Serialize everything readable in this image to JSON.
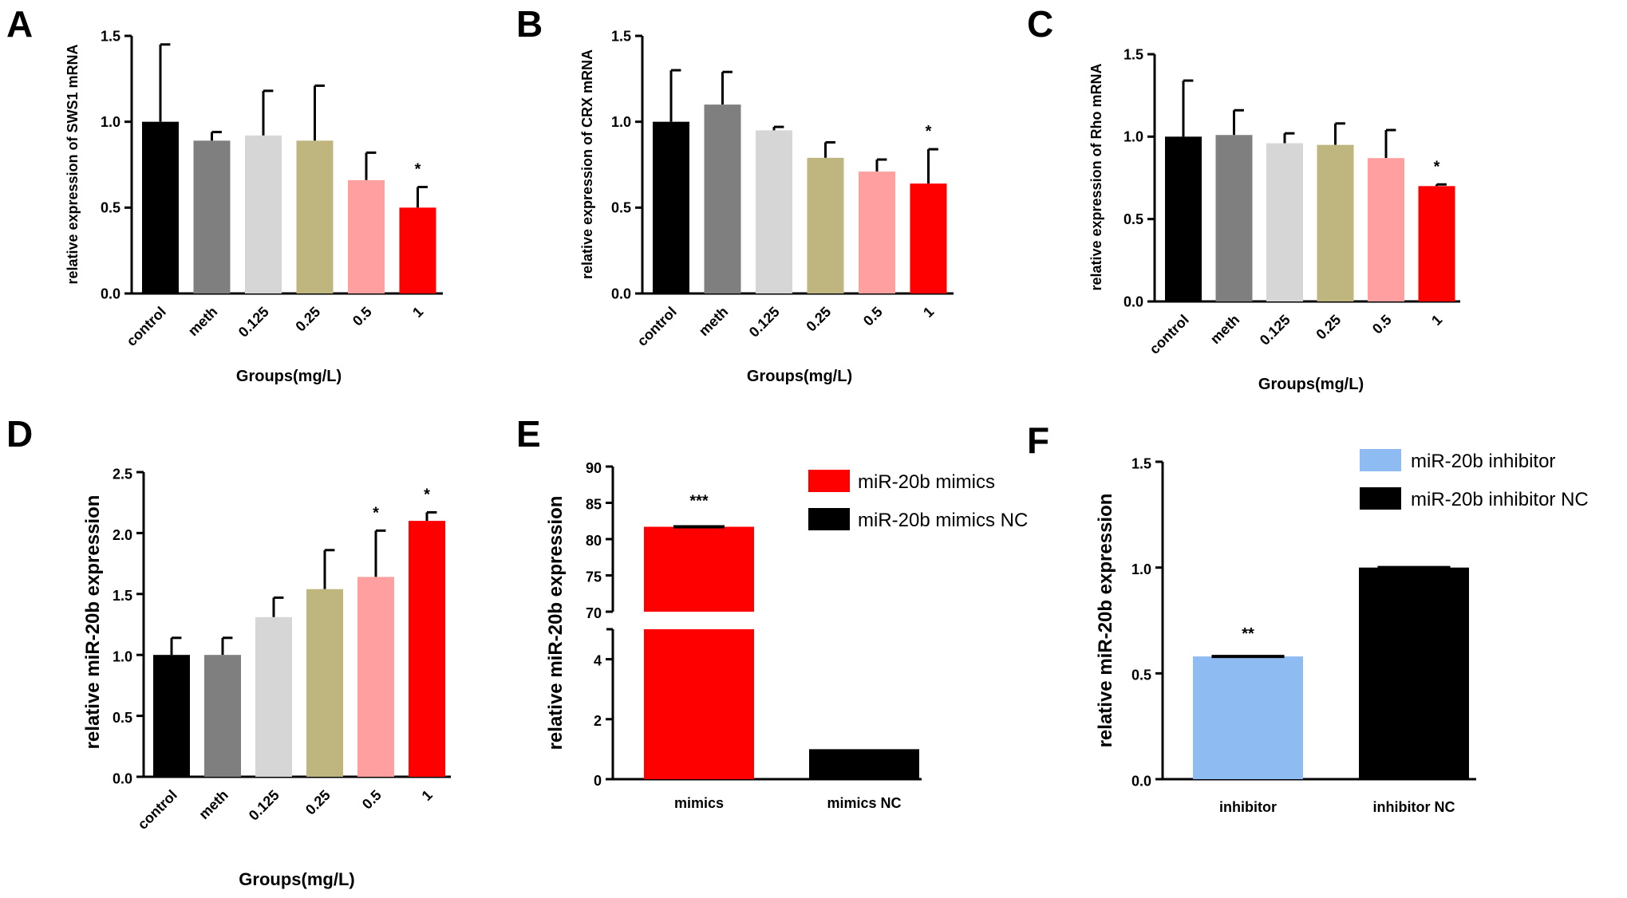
{
  "chart_data": [
    {
      "panel": "A",
      "type": "bar",
      "ylabel": "relative expression of SWS1 mRNA",
      "xlabel": "Groups(mg/L)",
      "categories": [
        "control",
        "meth",
        "0.125",
        "0.25",
        "0.5",
        "1"
      ],
      "values": [
        1.0,
        0.89,
        0.92,
        0.89,
        0.66,
        0.5
      ],
      "errors": [
        0.45,
        0.05,
        0.26,
        0.32,
        0.16,
        0.12
      ],
      "significance": [
        "",
        "",
        "",
        "",
        "",
        "*"
      ],
      "colors": [
        "#000000",
        "#7f7f7f",
        "#d6d6d6",
        "#bfb57f",
        "#ff9f9f",
        "#ff0000"
      ],
      "ylim": [
        0,
        1.5
      ],
      "yticks": [
        "0.0",
        "0.5",
        "1.0",
        "1.5"
      ]
    },
    {
      "panel": "B",
      "type": "bar",
      "ylabel": "relative expression of CRX mRNA",
      "xlabel": "Groups(mg/L)",
      "categories": [
        "control",
        "meth",
        "0.125",
        "0.25",
        "0.5",
        "1"
      ],
      "values": [
        1.0,
        1.1,
        0.95,
        0.79,
        0.71,
        0.64
      ],
      "errors": [
        0.3,
        0.19,
        0.02,
        0.09,
        0.07,
        0.2
      ],
      "significance": [
        "",
        "",
        "",
        "",
        "",
        "*"
      ],
      "colors": [
        "#000000",
        "#7f7f7f",
        "#d6d6d6",
        "#bfb57f",
        "#ff9f9f",
        "#ff0000"
      ],
      "ylim": [
        0,
        1.5
      ],
      "yticks": [
        "0.0",
        "0.5",
        "1.0",
        "1.5"
      ]
    },
    {
      "panel": "C",
      "type": "bar",
      "ylabel": "relative expression of Rho mRNA",
      "xlabel": "Groups(mg/L)",
      "categories": [
        "control",
        "meth",
        "0.125",
        "0.25",
        "0.5",
        "1"
      ],
      "values": [
        1.0,
        1.01,
        0.96,
        0.95,
        0.87,
        0.7
      ],
      "errors": [
        0.34,
        0.15,
        0.06,
        0.13,
        0.17,
        0.01
      ],
      "significance": [
        "",
        "",
        "",
        "",
        "",
        "*"
      ],
      "colors": [
        "#000000",
        "#7f7f7f",
        "#d6d6d6",
        "#bfb57f",
        "#ff9f9f",
        "#ff0000"
      ],
      "ylim": [
        0,
        1.5
      ],
      "yticks": [
        "0.0",
        "0.5",
        "1.0",
        "1.5"
      ]
    },
    {
      "panel": "D",
      "type": "bar",
      "ylabel": "relative miR-20b expression",
      "xlabel": "Groups(mg/L)",
      "categories": [
        "control",
        "meth",
        "0.125",
        "0.25",
        "0.5",
        "1"
      ],
      "values": [
        1.0,
        1.0,
        1.31,
        1.54,
        1.64,
        2.1
      ],
      "errors": [
        0.14,
        0.14,
        0.16,
        0.32,
        0.38,
        0.07
      ],
      "significance": [
        "",
        "",
        "",
        "",
        "*",
        "*"
      ],
      "colors": [
        "#000000",
        "#7f7f7f",
        "#d6d6d6",
        "#bfb57f",
        "#ff9f9f",
        "#ff0000"
      ],
      "ylim": [
        0,
        2.5
      ],
      "yticks": [
        "0.0",
        "0.5",
        "1.0",
        "1.5",
        "2.0",
        "2.5"
      ]
    },
    {
      "panel": "E",
      "type": "bar",
      "ylabel": "relative miR-20b expression",
      "categories": [
        "mimics",
        "mimics NC"
      ],
      "values": [
        81.7,
        1.0
      ],
      "errors": [
        0.2,
        0.0
      ],
      "significance": [
        "***",
        ""
      ],
      "colors": [
        "#ff0000",
        "#000000"
      ],
      "broken_axis": {
        "lower_range": [
          0,
          5
        ],
        "upper_range": [
          70,
          90
        ],
        "lower_ticks": [
          "0",
          "2",
          "4"
        ],
        "upper_ticks": [
          "70",
          "75",
          "80",
          "85",
          "90"
        ]
      },
      "legend": [
        "miR-20b mimics",
        "miR-20b mimics NC"
      ],
      "legend_position": "top-right"
    },
    {
      "panel": "F",
      "type": "bar",
      "ylabel": "relative miR-20b expression",
      "categories": [
        "inhibitor",
        "inhibitor NC"
      ],
      "values": [
        0.58,
        1.0
      ],
      "errors": [
        0.0,
        0.0
      ],
      "significance": [
        "**",
        ""
      ],
      "colors": [
        "#8fbbf3",
        "#000000"
      ],
      "ylim": [
        0,
        1.5
      ],
      "yticks": [
        "0.0",
        "0.5",
        "1.0",
        "1.5"
      ],
      "legend": [
        "miR-20b inhibitor",
        "miR-20b inhibitor NC"
      ],
      "legend_position": "top-right"
    }
  ]
}
